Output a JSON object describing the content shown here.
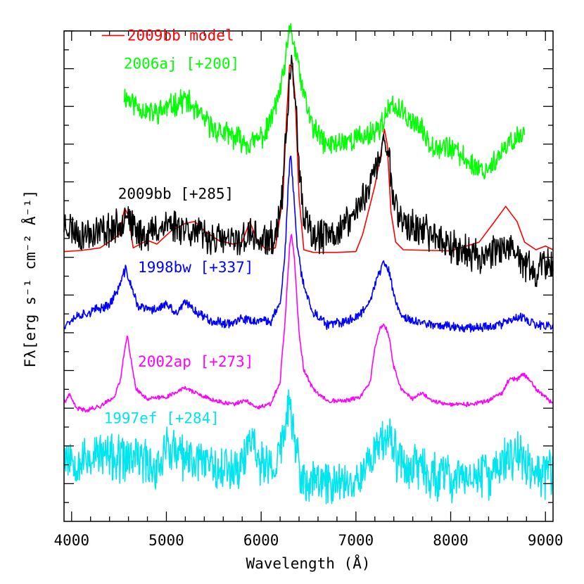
{
  "chart_data": {
    "type": "line",
    "title": "",
    "xlabel": "Wavelength (Å)",
    "ylabel": "Fλ[erg s⁻¹ cm⁻² Å⁻¹]",
    "xlim": [
      3920,
      9080
    ],
    "ylim": [
      0,
      13
    ],
    "x_ticks": [
      4000,
      5000,
      6000,
      7000,
      8000,
      9000
    ],
    "y_tick_labels_shown": false,
    "grid": false,
    "legend": "top-left",
    "series": [
      {
        "name": "2009bb model",
        "color": "#ff0000",
        "style": "smooth",
        "points": [
          [
            3920,
            7.15
          ],
          [
            4100,
            7.18
          ],
          [
            4300,
            7.25
          ],
          [
            4450,
            7.5
          ],
          [
            4500,
            7.6
          ],
          [
            4560,
            8.3
          ],
          [
            4600,
            8.1
          ],
          [
            4650,
            7.25
          ],
          [
            4800,
            7.45
          ],
          [
            4900,
            7.35
          ],
          [
            5050,
            7.7
          ],
          [
            5200,
            7.9
          ],
          [
            5300,
            7.95
          ],
          [
            5400,
            7.7
          ],
          [
            5550,
            7.45
          ],
          [
            5700,
            7.35
          ],
          [
            5800,
            7.4
          ],
          [
            5880,
            7.95
          ],
          [
            5950,
            7.5
          ],
          [
            6050,
            7.2
          ],
          [
            6150,
            7.25
          ],
          [
            6230,
            8.6
          ],
          [
            6270,
            10.8
          ],
          [
            6300,
            12.1
          ],
          [
            6330,
            12.05
          ],
          [
            6360,
            11.2
          ],
          [
            6400,
            8.6
          ],
          [
            6450,
            7.2
          ],
          [
            6550,
            7.13
          ],
          [
            6800,
            7.13
          ],
          [
            7000,
            7.15
          ],
          [
            7070,
            7.6
          ],
          [
            7130,
            8.2
          ],
          [
            7200,
            8.9
          ],
          [
            7260,
            9.7
          ],
          [
            7300,
            10.4
          ],
          [
            7330,
            10.0
          ],
          [
            7370,
            8.2
          ],
          [
            7420,
            7.4
          ],
          [
            7500,
            7.2
          ],
          [
            8000,
            7.17
          ],
          [
            8300,
            7.4
          ],
          [
            8450,
            7.9
          ],
          [
            8580,
            8.35
          ],
          [
            8700,
            7.95
          ],
          [
            8780,
            7.4
          ],
          [
            8900,
            7.2
          ],
          [
            9000,
            7.3
          ],
          [
            9080,
            7.2
          ]
        ]
      },
      {
        "name": "2006aj [+200]",
        "color": "#00ff00",
        "style": "noisy",
        "noise": 0.28,
        "seed": 11,
        "points": [
          [
            4550,
            11.3
          ],
          [
            4700,
            11.0
          ],
          [
            4850,
            10.8
          ],
          [
            5000,
            10.95
          ],
          [
            5200,
            11.2
          ],
          [
            5350,
            10.75
          ],
          [
            5500,
            10.4
          ],
          [
            5700,
            10.2
          ],
          [
            5900,
            10.0
          ],
          [
            6050,
            10.3
          ],
          [
            6150,
            11.0
          ],
          [
            6220,
            11.6
          ],
          [
            6280,
            12.6
          ],
          [
            6310,
            13.2
          ],
          [
            6340,
            12.7
          ],
          [
            6380,
            12.2
          ],
          [
            6450,
            11.3
          ],
          [
            6550,
            10.4
          ],
          [
            6700,
            9.95
          ],
          [
            6900,
            10.1
          ],
          [
            7100,
            10.2
          ],
          [
            7250,
            10.45
          ],
          [
            7350,
            10.9
          ],
          [
            7400,
            11.0
          ],
          [
            7500,
            10.8
          ],
          [
            7650,
            10.5
          ],
          [
            7800,
            10.0
          ],
          [
            8000,
            9.9
          ],
          [
            8200,
            9.5
          ],
          [
            8350,
            9.3
          ],
          [
            8500,
            9.6
          ],
          [
            8650,
            10.1
          ],
          [
            8780,
            10.3
          ]
        ]
      },
      {
        "name": "2009bb [+285]",
        "color": "#000000",
        "style": "noisy",
        "noise": 0.4,
        "seed": 23,
        "points": [
          [
            3920,
            7.9
          ],
          [
            4100,
            7.6
          ],
          [
            4300,
            7.7
          ],
          [
            4500,
            7.8
          ],
          [
            4580,
            8.3
          ],
          [
            4650,
            7.7
          ],
          [
            4800,
            7.6
          ],
          [
            5000,
            7.9
          ],
          [
            5200,
            7.8
          ],
          [
            5350,
            7.6
          ],
          [
            5500,
            7.5
          ],
          [
            5700,
            7.4
          ],
          [
            5900,
            7.6
          ],
          [
            6000,
            7.4
          ],
          [
            6150,
            7.5
          ],
          [
            6230,
            8.8
          ],
          [
            6280,
            11.0
          ],
          [
            6320,
            12.1
          ],
          [
            6360,
            11.4
          ],
          [
            6400,
            9.2
          ],
          [
            6450,
            8.0
          ],
          [
            6550,
            7.5
          ],
          [
            6750,
            7.6
          ],
          [
            6900,
            7.9
          ],
          [
            7000,
            8.2
          ],
          [
            7100,
            8.7
          ],
          [
            7200,
            9.3
          ],
          [
            7250,
            9.6
          ],
          [
            7300,
            10.1
          ],
          [
            7340,
            9.9
          ],
          [
            7400,
            8.5
          ],
          [
            7500,
            7.9
          ],
          [
            7700,
            7.7
          ],
          [
            7900,
            7.5
          ],
          [
            8100,
            7.2
          ],
          [
            8300,
            7.0
          ],
          [
            8500,
            7.3
          ],
          [
            8700,
            7.0
          ],
          [
            8900,
            6.6
          ],
          [
            9080,
            6.9
          ]
        ]
      },
      {
        "name": "1998bw [+337]",
        "color": "#0000ff",
        "style": "noisy",
        "noise": 0.11,
        "seed": 37,
        "points": [
          [
            3920,
            5.2
          ],
          [
            4050,
            5.45
          ],
          [
            4200,
            5.55
          ],
          [
            4400,
            5.75
          ],
          [
            4500,
            6.2
          ],
          [
            4570,
            6.7
          ],
          [
            4620,
            6.3
          ],
          [
            4700,
            5.7
          ],
          [
            4850,
            5.6
          ],
          [
            5000,
            5.75
          ],
          [
            5100,
            5.5
          ],
          [
            5200,
            5.8
          ],
          [
            5350,
            5.5
          ],
          [
            5500,
            5.3
          ],
          [
            5650,
            5.25
          ],
          [
            5800,
            5.35
          ],
          [
            5950,
            5.3
          ],
          [
            6100,
            5.3
          ],
          [
            6200,
            5.8
          ],
          [
            6250,
            7.0
          ],
          [
            6290,
            9.1
          ],
          [
            6310,
            9.7
          ],
          [
            6340,
            8.8
          ],
          [
            6380,
            7.3
          ],
          [
            6420,
            6.6
          ],
          [
            6480,
            6.0
          ],
          [
            6550,
            5.55
          ],
          [
            6700,
            5.2
          ],
          [
            6900,
            5.3
          ],
          [
            7050,
            5.5
          ],
          [
            7150,
            5.9
          ],
          [
            7250,
            6.6
          ],
          [
            7300,
            6.9
          ],
          [
            7350,
            6.6
          ],
          [
            7420,
            5.8
          ],
          [
            7500,
            5.4
          ],
          [
            7700,
            5.25
          ],
          [
            7900,
            5.2
          ],
          [
            8100,
            5.15
          ],
          [
            8300,
            5.15
          ],
          [
            8500,
            5.2
          ],
          [
            8650,
            5.35
          ],
          [
            8750,
            5.4
          ],
          [
            8900,
            5.2
          ],
          [
            9080,
            5.15
          ]
        ]
      },
      {
        "name": "2002ap [+273]",
        "color": "#ff00ff",
        "style": "noisy",
        "noise": 0.05,
        "seed": 41,
        "points": [
          [
            3920,
            3.15
          ],
          [
            3980,
            3.35
          ],
          [
            4050,
            3.0
          ],
          [
            4150,
            2.95
          ],
          [
            4300,
            3.05
          ],
          [
            4450,
            3.3
          ],
          [
            4520,
            3.8
          ],
          [
            4560,
            4.6
          ],
          [
            4590,
            4.9
          ],
          [
            4620,
            4.4
          ],
          [
            4680,
            3.5
          ],
          [
            4800,
            3.25
          ],
          [
            5000,
            3.3
          ],
          [
            5200,
            3.55
          ],
          [
            5350,
            3.35
          ],
          [
            5500,
            3.2
          ],
          [
            5700,
            3.1
          ],
          [
            5850,
            3.2
          ],
          [
            5950,
            3.0
          ],
          [
            6100,
            3.1
          ],
          [
            6200,
            3.7
          ],
          [
            6260,
            5.6
          ],
          [
            6300,
            7.3
          ],
          [
            6320,
            7.6
          ],
          [
            6350,
            7.0
          ],
          [
            6400,
            5.0
          ],
          [
            6450,
            4.0
          ],
          [
            6550,
            3.5
          ],
          [
            6700,
            3.2
          ],
          [
            6900,
            3.2
          ],
          [
            7050,
            3.3
          ],
          [
            7150,
            3.7
          ],
          [
            7200,
            4.6
          ],
          [
            7250,
            5.1
          ],
          [
            7300,
            5.2
          ],
          [
            7340,
            5.0
          ],
          [
            7400,
            4.1
          ],
          [
            7480,
            3.5
          ],
          [
            7600,
            3.25
          ],
          [
            7700,
            3.4
          ],
          [
            7800,
            3.2
          ],
          [
            8000,
            3.1
          ],
          [
            8200,
            3.1
          ],
          [
            8400,
            3.2
          ],
          [
            8550,
            3.4
          ],
          [
            8600,
            3.7
          ],
          [
            8650,
            3.8
          ],
          [
            8700,
            3.75
          ],
          [
            8750,
            3.9
          ],
          [
            8800,
            3.85
          ],
          [
            8900,
            3.5
          ],
          [
            9000,
            3.3
          ],
          [
            9080,
            3.1
          ]
        ]
      },
      {
        "name": "1997ef [+284]",
        "color": "#00e5ee",
        "style": "noisy",
        "noise": 0.55,
        "seed": 53,
        "points": [
          [
            3920,
            1.8
          ],
          [
            4100,
            1.6
          ],
          [
            4300,
            1.8
          ],
          [
            4500,
            1.6
          ],
          [
            4700,
            1.7
          ],
          [
            4900,
            1.4
          ],
          [
            5000,
            2.0
          ],
          [
            5200,
            1.6
          ],
          [
            5400,
            1.7
          ],
          [
            5600,
            1.4
          ],
          [
            5800,
            1.5
          ],
          [
            5900,
            2.3
          ],
          [
            6000,
            1.5
          ],
          [
            6150,
            1.4
          ],
          [
            6250,
            2.4
          ],
          [
            6290,
            3.2
          ],
          [
            6310,
            2.9
          ],
          [
            6360,
            2.0
          ],
          [
            6420,
            1.2
          ],
          [
            6500,
            0.9
          ],
          [
            6600,
            1.1
          ],
          [
            6800,
            1.0
          ],
          [
            7000,
            1.2
          ],
          [
            7150,
            1.6
          ],
          [
            7250,
            2.2
          ],
          [
            7350,
            2.2
          ],
          [
            7450,
            1.6
          ],
          [
            7600,
            1.5
          ],
          [
            7800,
            1.2
          ],
          [
            8000,
            1.1
          ],
          [
            8200,
            1.2
          ],
          [
            8400,
            1.2
          ],
          [
            8600,
            1.6
          ],
          [
            8700,
            1.9
          ],
          [
            8800,
            1.5
          ],
          [
            8950,
            1.2
          ],
          [
            9080,
            1.3
          ]
        ]
      }
    ],
    "labels": [
      {
        "text": "2009bb model",
        "color": "#ff0000",
        "with_line": true,
        "x": 4320,
        "y": 12.75
      },
      {
        "text": "2006aj [+200]",
        "color": "#00ff00",
        "x": 4550,
        "y": 12.0
      },
      {
        "text": "2009bb [+285]",
        "color": "#000000",
        "x": 4490,
        "y": 8.55
      },
      {
        "text": "1998bw [+337]",
        "color": "#0000ff",
        "x": 4700,
        "y": 6.6
      },
      {
        "text": "2002ap [+273]",
        "color": "#ff00ff",
        "x": 4700,
        "y": 4.1
      },
      {
        "text": "1997ef [+284]",
        "color": "#00e5ee",
        "x": 4340,
        "y": 2.6
      }
    ]
  }
}
